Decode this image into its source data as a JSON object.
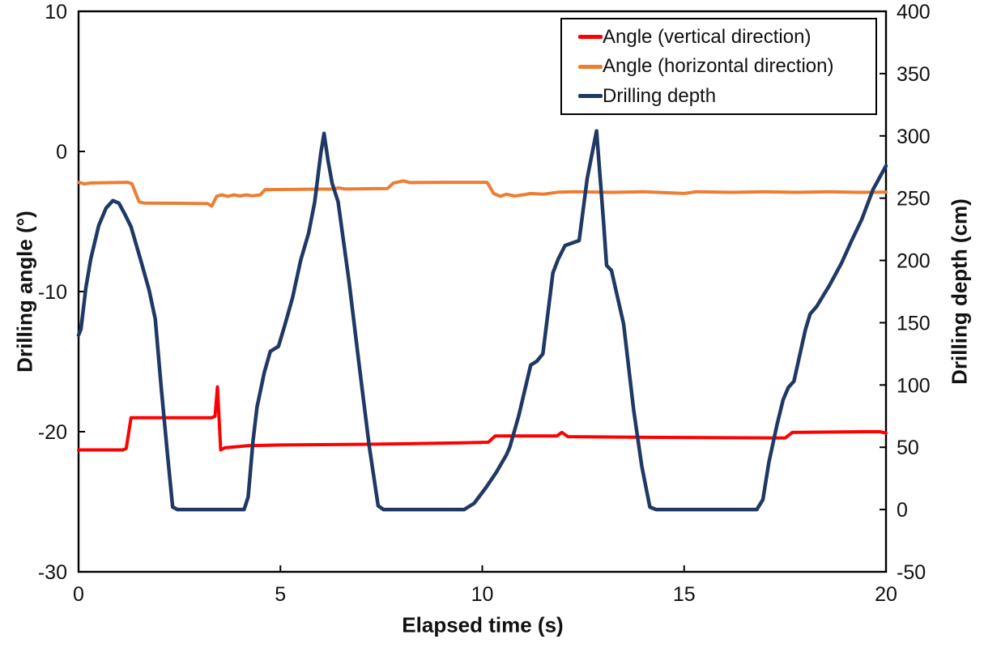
{
  "chart_data": {
    "type": "line",
    "title": "",
    "grid": false,
    "legend_position": "top-right-inside",
    "axis_color": "#000000",
    "x_axis": {
      "label": "Elapsed time (s)",
      "min": 0,
      "max": 20,
      "tick_values": [
        0,
        5,
        10,
        15,
        20
      ],
      "tick_labels": [
        "0",
        "5",
        "10",
        "15",
        "20"
      ]
    },
    "y_axis_left": {
      "label": "Drilling angle (°)",
      "min": -30,
      "max": 10,
      "tick_values": [
        10,
        0,
        -10,
        -20,
        -30
      ],
      "tick_labels": [
        "10",
        "0",
        "-10",
        "-20",
        "-30"
      ]
    },
    "y_axis_right": {
      "label": "Drilling depth (cm)",
      "min": -50,
      "max": 400,
      "tick_values": [
        400,
        350,
        300,
        250,
        200,
        150,
        100,
        50,
        0,
        -50
      ],
      "tick_labels": [
        "400",
        "350",
        "300",
        "250",
        "200",
        "150",
        "100",
        "50",
        "0",
        "-50"
      ]
    },
    "series": [
      {
        "id": "angle_vertical",
        "name": "Angle (vertical direction)",
        "color": "#FF0000",
        "axis": "left",
        "width": 4,
        "points": [
          [
            0,
            -21.3
          ],
          [
            1.1,
            -21.3
          ],
          [
            1.18,
            -21.2
          ],
          [
            1.3,
            -19.0
          ],
          [
            3.3,
            -19.0
          ],
          [
            3.38,
            -18.9
          ],
          [
            3.44,
            -16.8
          ],
          [
            3.52,
            -21.3
          ],
          [
            3.62,
            -21.15
          ],
          [
            4.2,
            -21.0
          ],
          [
            5.0,
            -20.95
          ],
          [
            7.0,
            -20.9
          ],
          [
            9.5,
            -20.8
          ],
          [
            10.15,
            -20.75
          ],
          [
            10.32,
            -20.3
          ],
          [
            11.85,
            -20.3
          ],
          [
            11.97,
            -20.05
          ],
          [
            12.12,
            -20.35
          ],
          [
            14.0,
            -20.4
          ],
          [
            17.5,
            -20.45
          ],
          [
            17.68,
            -20.05
          ],
          [
            19.5,
            -20.0
          ],
          [
            19.85,
            -20.0
          ],
          [
            20,
            -20.1
          ]
        ]
      },
      {
        "id": "angle_horizontal",
        "name": "Angle (horizontal direction)",
        "color": "#ED7D31",
        "axis": "left",
        "width": 4,
        "points": [
          [
            0,
            -2.2
          ],
          [
            0.15,
            -2.32
          ],
          [
            0.3,
            -2.25
          ],
          [
            1.22,
            -2.2
          ],
          [
            1.32,
            -2.3
          ],
          [
            1.5,
            -3.6
          ],
          [
            1.62,
            -3.68
          ],
          [
            2.5,
            -3.7
          ],
          [
            3.2,
            -3.72
          ],
          [
            3.3,
            -3.9
          ],
          [
            3.42,
            -3.2
          ],
          [
            3.55,
            -3.1
          ],
          [
            3.7,
            -3.2
          ],
          [
            3.85,
            -3.1
          ],
          [
            4.0,
            -3.18
          ],
          [
            4.15,
            -3.1
          ],
          [
            4.3,
            -3.17
          ],
          [
            4.5,
            -3.1
          ],
          [
            4.62,
            -2.72
          ],
          [
            5.5,
            -2.7
          ],
          [
            6.3,
            -2.68
          ],
          [
            6.45,
            -2.6
          ],
          [
            6.6,
            -2.68
          ],
          [
            7.65,
            -2.65
          ],
          [
            7.8,
            -2.25
          ],
          [
            8.05,
            -2.1
          ],
          [
            8.2,
            -2.22
          ],
          [
            9.0,
            -2.2
          ],
          [
            10.12,
            -2.2
          ],
          [
            10.28,
            -3.0
          ],
          [
            10.45,
            -3.2
          ],
          [
            10.6,
            -3.05
          ],
          [
            10.8,
            -3.18
          ],
          [
            11.0,
            -3.1
          ],
          [
            11.2,
            -3.0
          ],
          [
            11.5,
            -3.05
          ],
          [
            11.9,
            -2.9
          ],
          [
            12.3,
            -2.87
          ],
          [
            13.2,
            -2.92
          ],
          [
            14.0,
            -2.87
          ],
          [
            15.0,
            -3.0
          ],
          [
            15.3,
            -2.87
          ],
          [
            16.2,
            -2.92
          ],
          [
            17.0,
            -2.87
          ],
          [
            17.8,
            -2.92
          ],
          [
            18.6,
            -2.87
          ],
          [
            19.3,
            -2.92
          ],
          [
            20,
            -2.9
          ]
        ]
      },
      {
        "id": "drilling_depth",
        "name": "Drilling depth",
        "color": "#1F3864",
        "axis": "right",
        "width": 4.5,
        "points": [
          [
            0,
            140
          ],
          [
            0.06,
            145
          ],
          [
            0.18,
            178
          ],
          [
            0.3,
            201
          ],
          [
            0.5,
            228
          ],
          [
            0.68,
            242
          ],
          [
            0.85,
            248
          ],
          [
            1.0,
            246
          ],
          [
            1.15,
            237
          ],
          [
            1.3,
            227
          ],
          [
            1.55,
            199
          ],
          [
            1.75,
            176
          ],
          [
            1.9,
            153
          ],
          [
            2.05,
            97
          ],
          [
            2.2,
            45
          ],
          [
            2.33,
            2
          ],
          [
            2.45,
            0
          ],
          [
            4.1,
            0
          ],
          [
            4.2,
            10
          ],
          [
            4.32,
            55
          ],
          [
            4.42,
            82
          ],
          [
            4.6,
            110
          ],
          [
            4.75,
            127
          ],
          [
            4.95,
            131
          ],
          [
            5.1,
            147
          ],
          [
            5.3,
            170
          ],
          [
            5.5,
            200
          ],
          [
            5.7,
            222
          ],
          [
            5.85,
            247
          ],
          [
            6.0,
            286
          ],
          [
            6.08,
            302
          ],
          [
            6.18,
            280
          ],
          [
            6.28,
            262
          ],
          [
            6.43,
            247
          ],
          [
            6.7,
            183
          ],
          [
            6.95,
            116
          ],
          [
            7.2,
            51
          ],
          [
            7.42,
            3
          ],
          [
            7.55,
            0
          ],
          [
            9.55,
            0
          ],
          [
            9.8,
            5
          ],
          [
            10.1,
            18
          ],
          [
            10.35,
            30
          ],
          [
            10.6,
            44
          ],
          [
            10.68,
            50
          ],
          [
            10.9,
            75
          ],
          [
            11.2,
            116
          ],
          [
            11.35,
            119
          ],
          [
            11.5,
            125
          ],
          [
            11.75,
            190
          ],
          [
            11.88,
            201
          ],
          [
            12.05,
            212
          ],
          [
            12.4,
            216
          ],
          [
            12.6,
            266
          ],
          [
            12.83,
            304
          ],
          [
            13.0,
            232
          ],
          [
            13.08,
            196
          ],
          [
            13.2,
            192
          ],
          [
            13.5,
            149
          ],
          [
            13.75,
            80
          ],
          [
            13.95,
            35
          ],
          [
            14.15,
            2
          ],
          [
            14.3,
            0
          ],
          [
            16.8,
            0
          ],
          [
            16.95,
            8
          ],
          [
            17.1,
            38
          ],
          [
            17.3,
            68
          ],
          [
            17.45,
            88
          ],
          [
            17.58,
            98
          ],
          [
            17.72,
            103
          ],
          [
            18.0,
            144
          ],
          [
            18.12,
            157
          ],
          [
            18.28,
            163
          ],
          [
            18.6,
            180
          ],
          [
            18.9,
            198
          ],
          [
            19.15,
            216
          ],
          [
            19.4,
            233
          ],
          [
            19.68,
            257
          ],
          [
            20,
            276
          ]
        ]
      }
    ]
  }
}
